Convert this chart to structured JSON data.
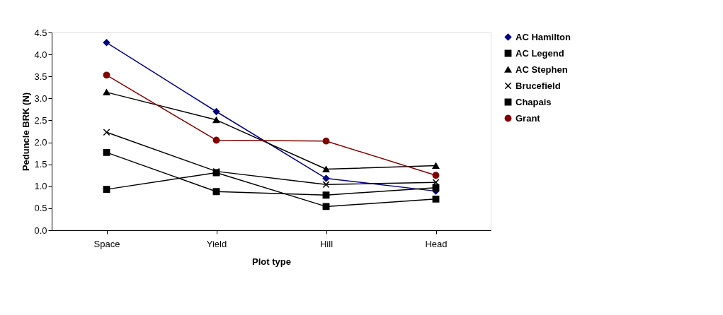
{
  "chart_data": {
    "type": "line",
    "xlabel": "Plot type",
    "ylabel": "Peduncle BRK (N)",
    "categories": [
      "Space",
      "Yield",
      "Hill",
      "Head"
    ],
    "ylim": [
      0,
      4.5
    ],
    "yticks": [
      {
        "value": 0,
        "label": "0.0"
      },
      {
        "value": 0.5,
        "label": "0.5"
      },
      {
        "value": 1,
        "label": "1.0"
      },
      {
        "value": 1.5,
        "label": "1.5"
      },
      {
        "value": 2,
        "label": "2.0"
      },
      {
        "value": 2.5,
        "label": "2.5"
      },
      {
        "value": 3,
        "label": "3.0"
      },
      {
        "value": 3.5,
        "label": "3.5"
      },
      {
        "value": 4,
        "label": "4.0"
      },
      {
        "value": 4.5,
        "label": "4.5"
      }
    ],
    "grid": false,
    "legend": "right",
    "line_style": "solid",
    "series": [
      {
        "name": "AC Hamilton",
        "color": "#000080",
        "marker": "diamond",
        "values": [
          4.27,
          2.7,
          1.18,
          0.89
        ]
      },
      {
        "name": "AC Legend",
        "color": "#000000",
        "marker": "square",
        "values": [
          0.93,
          1.31,
          0.54,
          0.71
        ]
      },
      {
        "name": "AC Stephen",
        "color": "#000000",
        "marker": "triangle",
        "values": [
          3.14,
          2.51,
          1.39,
          1.47
        ]
      },
      {
        "name": "Brucefield",
        "color": "#000000",
        "marker": "cross",
        "values": [
          2.23,
          1.34,
          1.04,
          1.09
        ]
      },
      {
        "name": "Chapais",
        "color": "#000000",
        "marker": "square",
        "values": [
          1.77,
          0.88,
          0.8,
          0.97
        ]
      },
      {
        "name": "Grant",
        "color": "#800000",
        "marker": "circle",
        "values": [
          3.53,
          2.05,
          2.03,
          1.25
        ]
      }
    ]
  }
}
